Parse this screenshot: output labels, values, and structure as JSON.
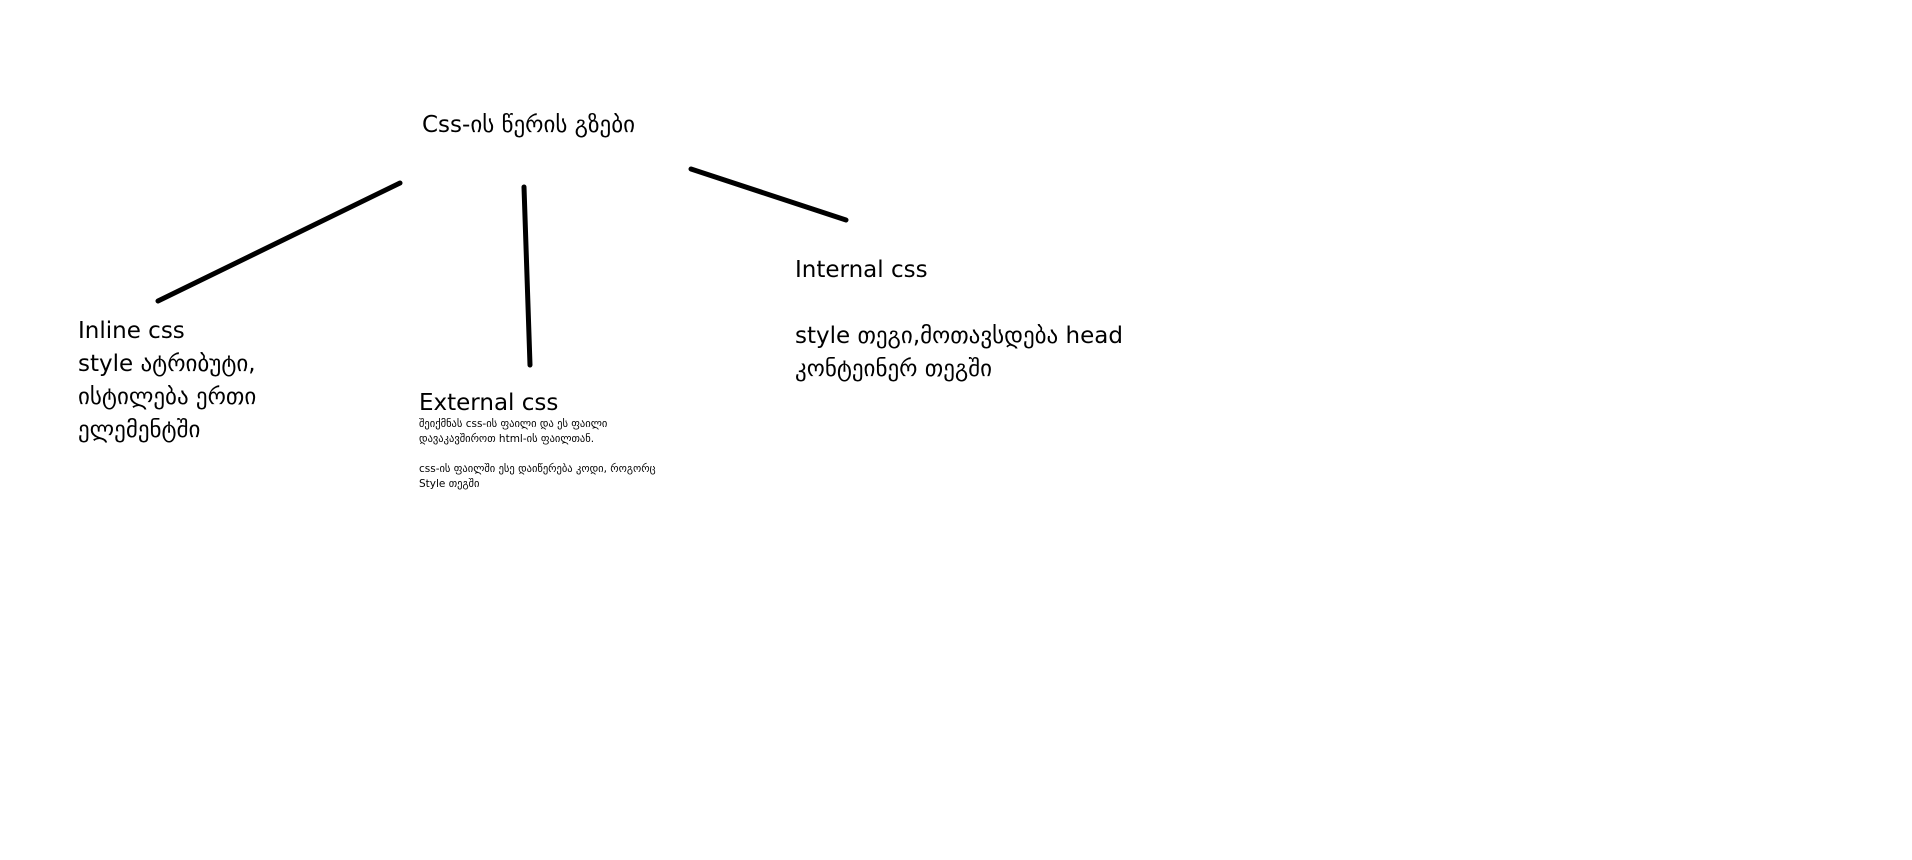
{
  "diagram": {
    "title": "Css-ის წერის გზები",
    "inline": {
      "title": "Inline css",
      "lines": [
        "style ატრიბუტი,",
        "ისტილება ერთი",
        "ელემენტში"
      ]
    },
    "external": {
      "title": "External css",
      "desc_lines": [
        "შეიქმნას css-ის ფაილი და ეს ფაილი",
        "დავაკავშიროთ html-ის ფაილთან.",
        "css-ის ფაილში ესე დაიწერება კოდი, როგორც",
        "Style თეგში"
      ]
    },
    "internal": {
      "title": "Internal css",
      "lines": [
        "style თეგი,მოთავსდება head",
        "კონტეინერ თეგში"
      ]
    }
  },
  "colors": {
    "ink": "#000000",
    "background": "#ffffff"
  }
}
